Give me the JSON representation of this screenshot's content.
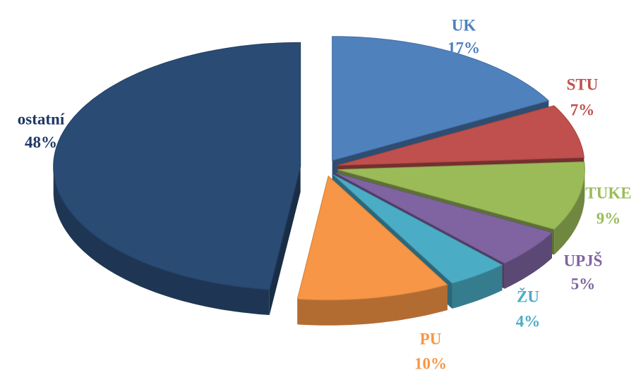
{
  "chart_data": {
    "type": "pie",
    "categories": [
      "UK",
      "STU",
      "TUKE",
      "UPJŠ",
      "ŽU",
      "PU",
      "ostatní"
    ],
    "values": [
      17,
      7,
      9,
      5,
      4,
      10,
      48
    ],
    "value_labels": [
      "17%",
      "7%",
      "9%",
      "5%",
      "4%",
      "10%",
      "48%"
    ],
    "colors": [
      "#4f81bd",
      "#c0504d",
      "#9bbb59",
      "#8064a2",
      "#4bacc6",
      "#f79646",
      "#2a4b74"
    ]
  }
}
